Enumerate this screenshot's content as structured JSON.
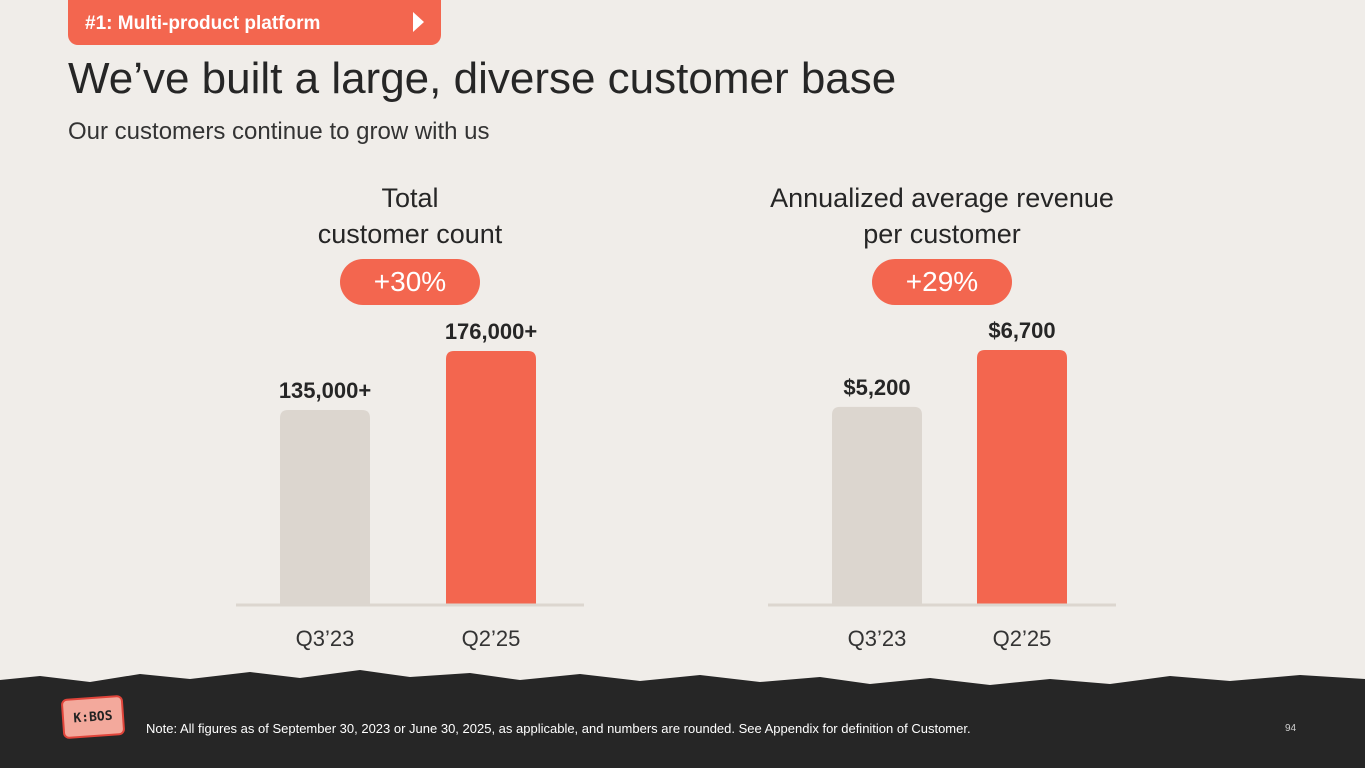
{
  "header": {
    "tag_label": "#1: Multi-product platform",
    "title": "We’ve built a large, diverse customer base",
    "subtitle": "Our customers continue to grow with us"
  },
  "colors": {
    "accent": "#f3664f",
    "bar_muted": "#dcd6cf",
    "background": "#f0ede9",
    "footer": "#262626"
  },
  "chart_data": [
    {
      "type": "bar",
      "title_lines": [
        "Total",
        "customer count"
      ],
      "growth_badge": "+30%",
      "categories": [
        "Q3’23",
        "Q2’25"
      ],
      "values": [
        135000,
        176000
      ],
      "value_labels": [
        "135,000+",
        "176,000+"
      ],
      "ylim": [
        0,
        176000
      ]
    },
    {
      "type": "bar",
      "title_lines": [
        "Annualized average revenue",
        "per customer"
      ],
      "growth_badge": "+29%",
      "categories": [
        "Q3’23",
        "Q2’25"
      ],
      "values": [
        5200,
        6700
      ],
      "value_labels": [
        "$5,200",
        "$6,700"
      ],
      "ylim": [
        0,
        6700
      ]
    }
  ],
  "footer": {
    "logo_text": "K:BOS",
    "note": "Note: All figures as of September 30, 2023 or June 30, 2025, as applicable, and numbers are rounded. See Appendix for definition of Customer.",
    "page_number": "94"
  }
}
